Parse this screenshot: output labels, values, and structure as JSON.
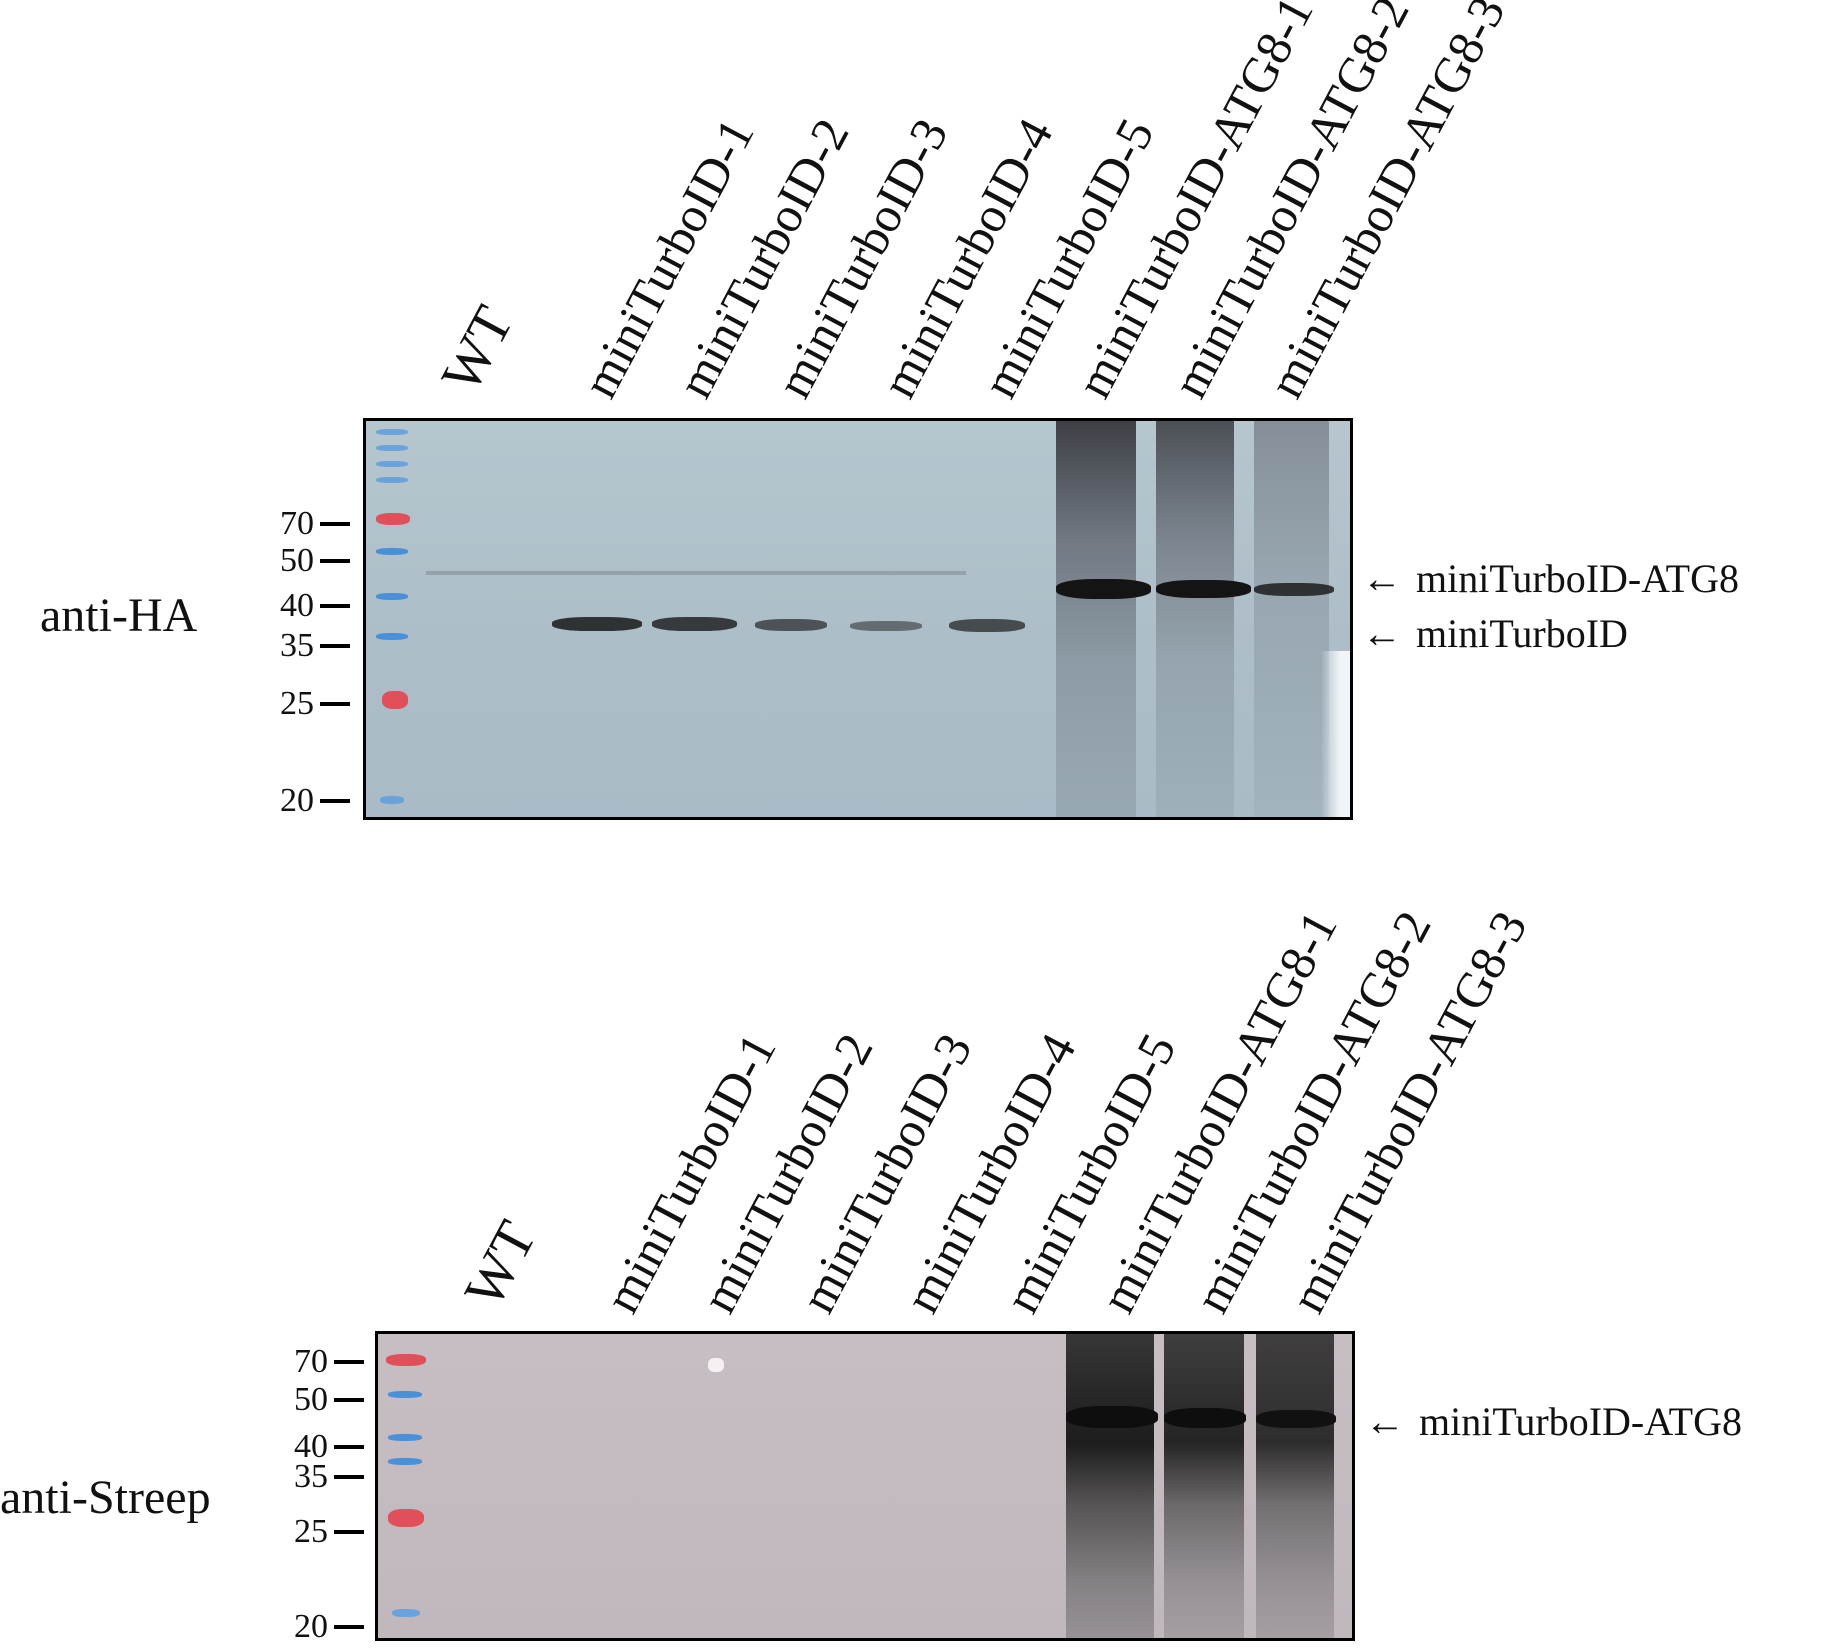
{
  "top_panel": {
    "antibody": "anti-HA",
    "lanes": [
      "WT",
      "miniTurboID-1",
      "miniTurboID-2",
      "miniTurboID-3",
      "miniTurboID-4",
      "miniTurboID-5",
      "miniTurboID-ATG8-1",
      "miniTurboID-ATG8-2",
      "miniTurboID-ATG8-3"
    ],
    "markers": [
      "70",
      "50",
      "40",
      "35",
      "25",
      "20"
    ],
    "annotations": [
      "miniTurboID-ATG8",
      "miniTurboID"
    ]
  },
  "bottom_panel": {
    "antibody": "anti-Streep",
    "lanes": [
      "WT",
      "miniTurboID-1",
      "miniTurboID-2",
      "miniTurboID-3",
      "miniTurboID-4",
      "miniTurboID-5",
      "miniTurboID-ATG8-1",
      "miniTurboID-ATG8-2",
      "miniTurboID-ATG8-3"
    ],
    "markers": [
      "70",
      "50",
      "40",
      "35",
      "25",
      "20"
    ],
    "annotations": [
      "miniTurboID-ATG8"
    ]
  },
  "arrow_glyph": "←",
  "colors": {
    "top_membrane": "#afc0ca",
    "bottom_membrane": "#c3bbc0",
    "band_dark": "#1a1a1a",
    "ladder_red": "#e0505a",
    "ladder_blue": "#4a90d8"
  }
}
